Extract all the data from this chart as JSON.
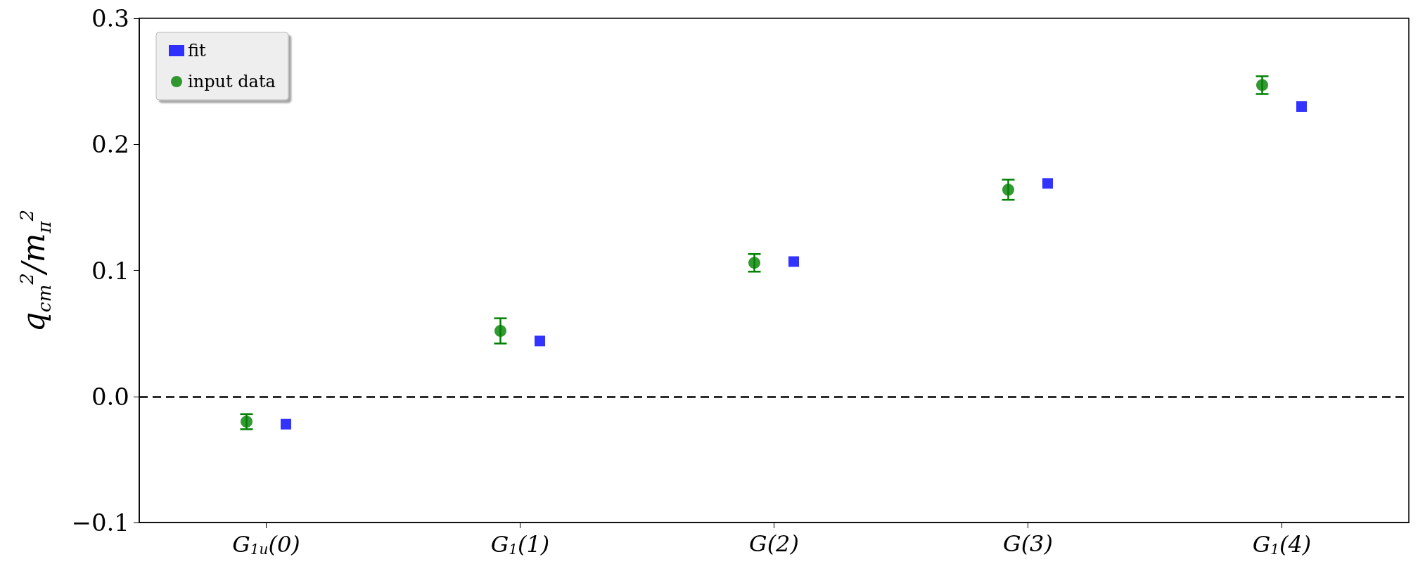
{
  "chart_data": {
    "type": "scatter",
    "ylabel": "q$_{cm}$$^{2}$/m$_{π}$$^{2}$",
    "categories": [
      "G$_{1u}$(0)",
      "G$_{1}$(1)",
      "G(2)",
      "G(3)",
      "G$_{1}$(4)"
    ],
    "series": [
      {
        "name": "fit",
        "color": "#0000ff",
        "marker": "square",
        "values": [
          -0.022,
          0.044,
          0.107,
          0.169,
          0.23
        ]
      },
      {
        "name": "input data",
        "color": "#008000",
        "marker": "circle",
        "values": [
          -0.02,
          0.052,
          0.106,
          0.164,
          0.247
        ],
        "errors": [
          0.006,
          0.01,
          0.007,
          0.008,
          0.007
        ]
      }
    ],
    "ylim": [
      -0.1,
      0.3
    ],
    "yticks": [
      {
        "value": -0.1,
        "label": "−0.1"
      },
      {
        "value": 0,
        "label": "0.0"
      },
      {
        "value": 0.1,
        "label": "0.1"
      },
      {
        "value": 0.2,
        "label": "0.2"
      },
      {
        "value": 0.3,
        "label": "0.3"
      }
    ],
    "ref_lines": [
      {
        "axis": "y",
        "value": 0,
        "color": "#000000",
        "line_style": "dashed"
      }
    ],
    "grid": false,
    "legend": "top left"
  }
}
